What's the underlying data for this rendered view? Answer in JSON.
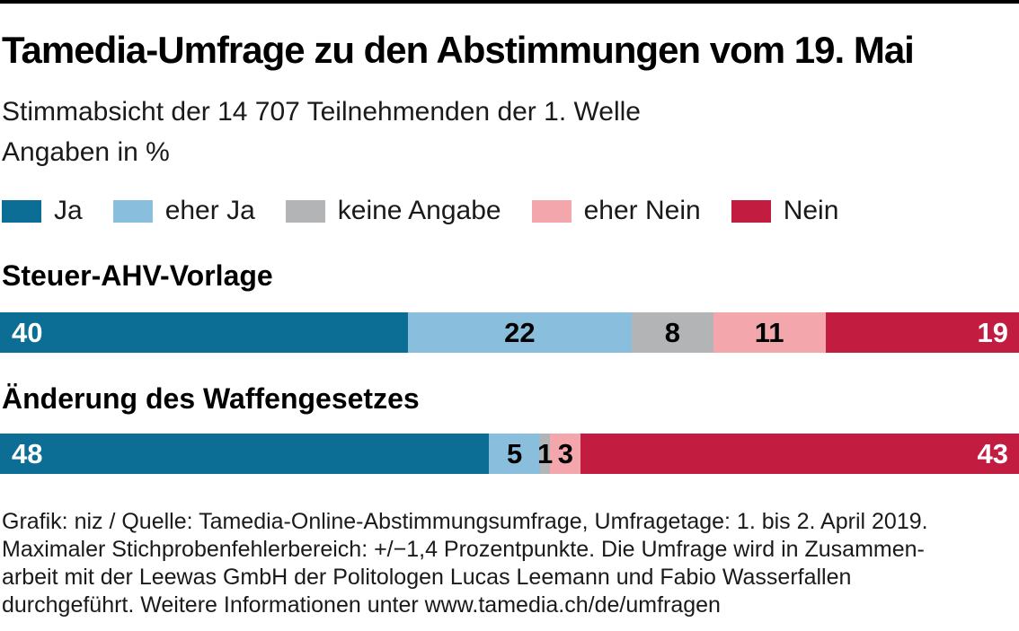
{
  "title": "Tamedia-Umfrage zu den Abstimmungen vom 19. Mai",
  "subtitle": {
    "line1": "Stimmabsicht der 14 707 Teilnehmenden der 1. Welle",
    "line2": "Angaben in %"
  },
  "legend": [
    {
      "label": "Ja",
      "color": "#0c6d95"
    },
    {
      "label": "eher Ja",
      "color": "#89bedd"
    },
    {
      "label": "keine Angabe",
      "color": "#b3b4b6"
    },
    {
      "label": "eher Nein",
      "color": "#f3a6ab"
    },
    {
      "label": "Nein",
      "color": "#c31c41"
    }
  ],
  "chart_data": {
    "type": "bar",
    "orientation": "horizontal-stacked",
    "unit": "%",
    "xlim": [
      0,
      100
    ],
    "categories": [
      "Steuer-AHV-Vorlage",
      "Änderung des Waffengesetzes"
    ],
    "series": [
      {
        "name": "Ja",
        "color": "#0c6d95",
        "values": [
          40,
          48
        ]
      },
      {
        "name": "eher Ja",
        "color": "#89bedd",
        "values": [
          22,
          5
        ]
      },
      {
        "name": "keine Angabe",
        "color": "#b3b4b6",
        "values": [
          8,
          1
        ]
      },
      {
        "name": "eher Nein",
        "color": "#f3a6ab",
        "values": [
          11,
          3
        ]
      },
      {
        "name": "Nein",
        "color": "#c31c41",
        "values": [
          19,
          43
        ]
      }
    ]
  },
  "footer_lines": [
    "Grafik: niz / Quelle: Tamedia-Online-Abstimmungsumfrage, Umfragetage: 1. bis 2. April 2019.",
    "Maximaler Stichprobenfehlerbereich: +/−1,4 Prozentpunkte. Die Umfrage wird in Zusammen-",
    "arbeit mit der Leewas GmbH der Politologen Lucas Leemann und Fabio Wasserfallen",
    "durchgeführt. Weitere Informationen unter www.tamedia.ch/de/umfragen"
  ]
}
